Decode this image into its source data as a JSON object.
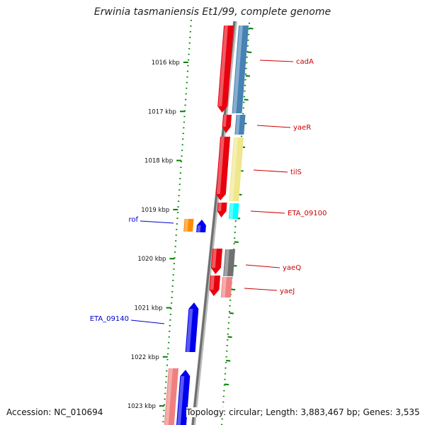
{
  "title": "Erwinia tasmaniensis Et1/99, complete genome",
  "accession": "Accession: NC_010694",
  "topology": "Topology: circular; Length: 3,883,467 bp; Genes: 3,535",
  "colors": {
    "red": "#e8000e",
    "pink": "#f08080",
    "steelblue": "#4682b4",
    "khaki": "#f0e68c",
    "cyan": "#00ffff",
    "gray": "#707070",
    "orange": "#ff8c00",
    "blue": "#0000ee",
    "axis_green": "#008000",
    "label_red": "#cc0000",
    "label_blue": "#0000cc"
  },
  "ticks": [
    {
      "label": "1016 kbp"
    },
    {
      "label": "1017 kbp"
    },
    {
      "label": "1018 kbp"
    },
    {
      "label": "1019 kbp"
    },
    {
      "label": "1020 kbp"
    },
    {
      "label": "1021 kbp"
    },
    {
      "label": "1022 kbp"
    },
    {
      "label": "1023 kbp"
    }
  ],
  "gene_labels_right": [
    {
      "name": "cadA"
    },
    {
      "name": "yaeR"
    },
    {
      "name": "tilS"
    },
    {
      "name": "ETA_09100"
    },
    {
      "name": "yaeQ"
    },
    {
      "name": "yaeJ"
    }
  ],
  "gene_labels_left": [
    {
      "name": "rof"
    },
    {
      "name": "ETA_09140"
    }
  ]
}
